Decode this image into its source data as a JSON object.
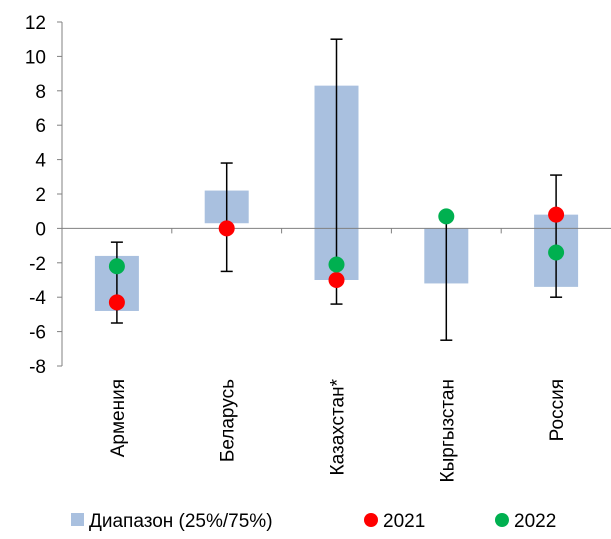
{
  "chart_data": {
    "type": "bar",
    "categories": [
      "Армения",
      "Беларусь",
      "Казахстан*",
      "Кыргызстан",
      "Россия"
    ],
    "ylim": [
      -8,
      12
    ],
    "yticks": [
      -8,
      -6,
      -4,
      -2,
      0,
      2,
      4,
      6,
      8,
      10,
      12
    ],
    "grid": false,
    "legend_position": "bottom",
    "ranges": {
      "name": "Диапазон (25%/75%)",
      "color": "#a9c0df",
      "low": [
        -4.8,
        0.3,
        -3.0,
        -3.2,
        -3.4
      ],
      "high": [
        -1.6,
        2.2,
        8.3,
        0.0,
        0.8
      ]
    },
    "whiskers": {
      "min": [
        -5.5,
        -2.5,
        -4.4,
        -6.5,
        -4.0
      ],
      "max": [
        -0.8,
        3.8,
        11.0,
        0.7,
        3.1
      ]
    },
    "series": [
      {
        "name": "2021",
        "color": "#ff0000",
        "values": [
          -4.3,
          0.0,
          -3.0,
          null,
          0.8
        ]
      },
      {
        "name": "2022",
        "color": "#00b050",
        "values": [
          -2.2,
          null,
          -2.1,
          0.7,
          -1.4
        ]
      }
    ]
  }
}
